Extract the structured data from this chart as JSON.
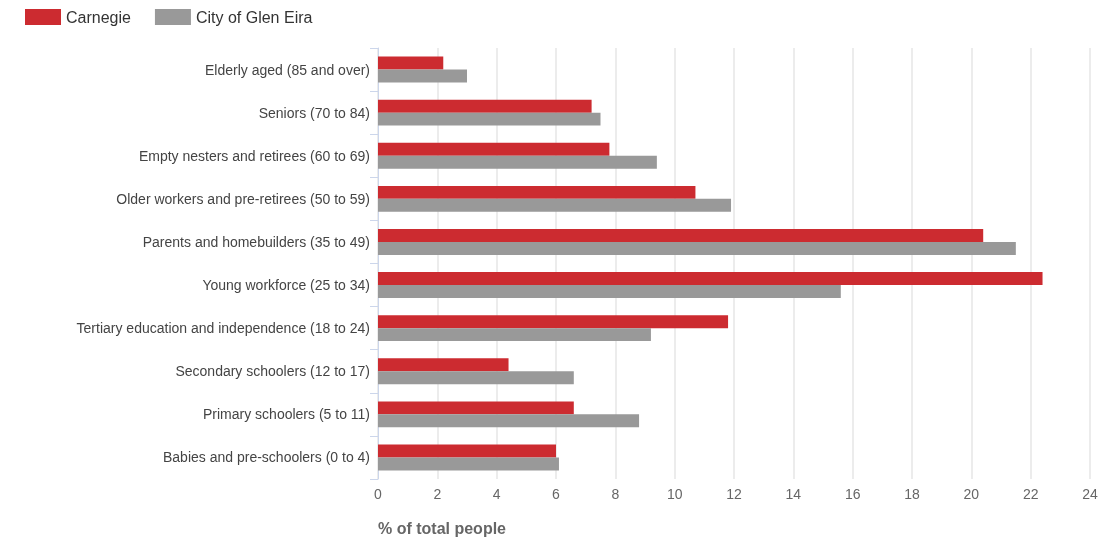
{
  "chart_data": {
    "type": "bar",
    "orientation": "horizontal",
    "xlabel": "% of total people",
    "categories": [
      "Elderly aged (85 and over)",
      "Seniors (70 to 84)",
      "Empty nesters and retirees (60 to 69)",
      "Older workers and pre-retirees (50 to 59)",
      "Parents and homebuilders (35 to 49)",
      "Young workforce (25 to 34)",
      "Tertiary education and independence (18 to 24)",
      "Secondary schoolers (12 to 17)",
      "Primary schoolers (5 to 11)",
      "Babies and pre-schoolers (0 to 4)"
    ],
    "series": [
      {
        "name": "Carnegie",
        "color": "#cc2b30",
        "values": [
          2.2,
          7.2,
          7.8,
          10.7,
          20.4,
          22.4,
          11.8,
          4.4,
          6.6,
          6.0
        ]
      },
      {
        "name": "City of Glen Eira",
        "color": "#999999",
        "values": [
          3.0,
          7.5,
          9.4,
          11.9,
          21.5,
          15.6,
          9.2,
          6.6,
          8.8,
          6.1
        ]
      }
    ],
    "xlim": [
      0,
      24
    ],
    "xticks": [
      0,
      2,
      4,
      6,
      8,
      10,
      12,
      14,
      16,
      18,
      20,
      22,
      24
    ],
    "grid": "x",
    "legend": "top left"
  }
}
